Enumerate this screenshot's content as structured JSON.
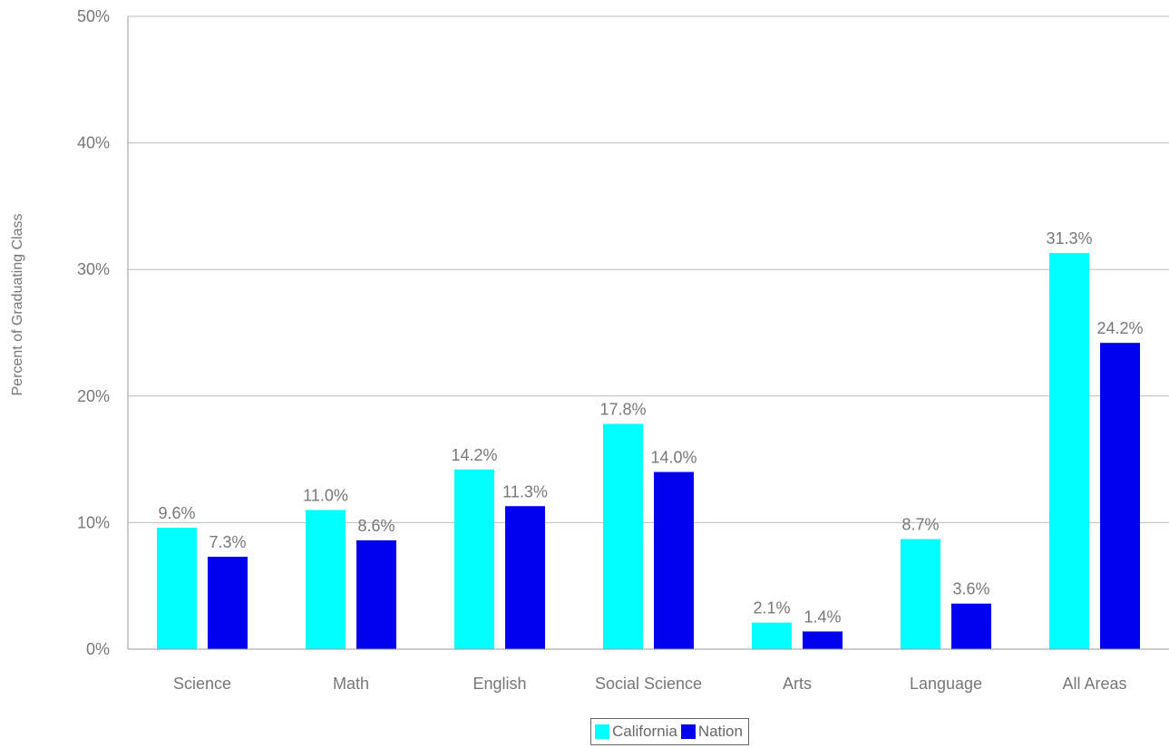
{
  "chart_data": {
    "type": "bar",
    "title": "",
    "xlabel": "",
    "ylabel": "Percent of Graduating Class",
    "ylim": [
      0,
      50
    ],
    "yticks": [
      "0%",
      "10%",
      "20%",
      "30%",
      "40%",
      "50%"
    ],
    "tick_values": [
      0,
      10,
      20,
      30,
      40,
      50
    ],
    "grid": true,
    "legend_position": "bottom-center",
    "categories": [
      "Science",
      "Math",
      "English",
      "Social Science",
      "Arts",
      "Language",
      "All Areas"
    ],
    "series": [
      {
        "name": "California",
        "color": "#00ffff",
        "values": [
          9.6,
          11.0,
          14.2,
          17.8,
          2.1,
          8.7,
          31.3
        ],
        "labels": [
          "9.6%",
          "11.0%",
          "14.2%",
          "17.8%",
          "2.1%",
          "8.7%",
          "31.3%"
        ]
      },
      {
        "name": "Nation",
        "color": "#0000ee",
        "values": [
          7.3,
          8.6,
          11.3,
          14.0,
          1.4,
          3.6,
          24.2
        ],
        "labels": [
          "7.3%",
          "8.6%",
          "11.3%",
          "14.0%",
          "1.4%",
          "3.6%",
          "24.2%"
        ]
      }
    ]
  }
}
